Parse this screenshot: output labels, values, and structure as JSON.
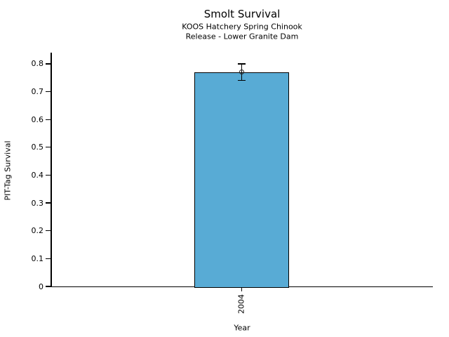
{
  "chart_data": {
    "type": "bar",
    "title": "Smolt Survival",
    "subtitle": [
      "KOOS Hatchery Spring Chinook",
      "Release - Lower Granite Dam"
    ],
    "xlabel": "Year",
    "ylabel": "PIT-Tag Survival",
    "categories": [
      "2004"
    ],
    "values": [
      0.77
    ],
    "error_low": [
      0.74
    ],
    "error_high": [
      0.8
    ],
    "ylim": [
      0,
      0.84
    ],
    "yticks": [
      0,
      0.1,
      0.2,
      0.3,
      0.4,
      0.5,
      0.6,
      0.7,
      0.8
    ],
    "ytick_labels": [
      "0",
      "0.1",
      "0.2",
      "0.3",
      "0.4",
      "0.5",
      "0.6",
      "0.7",
      "0.8"
    ],
    "bar_color": "#58ABD5",
    "bar_edge_color": "#000000",
    "error_color": "#000000",
    "grid": false,
    "legend": "none"
  }
}
